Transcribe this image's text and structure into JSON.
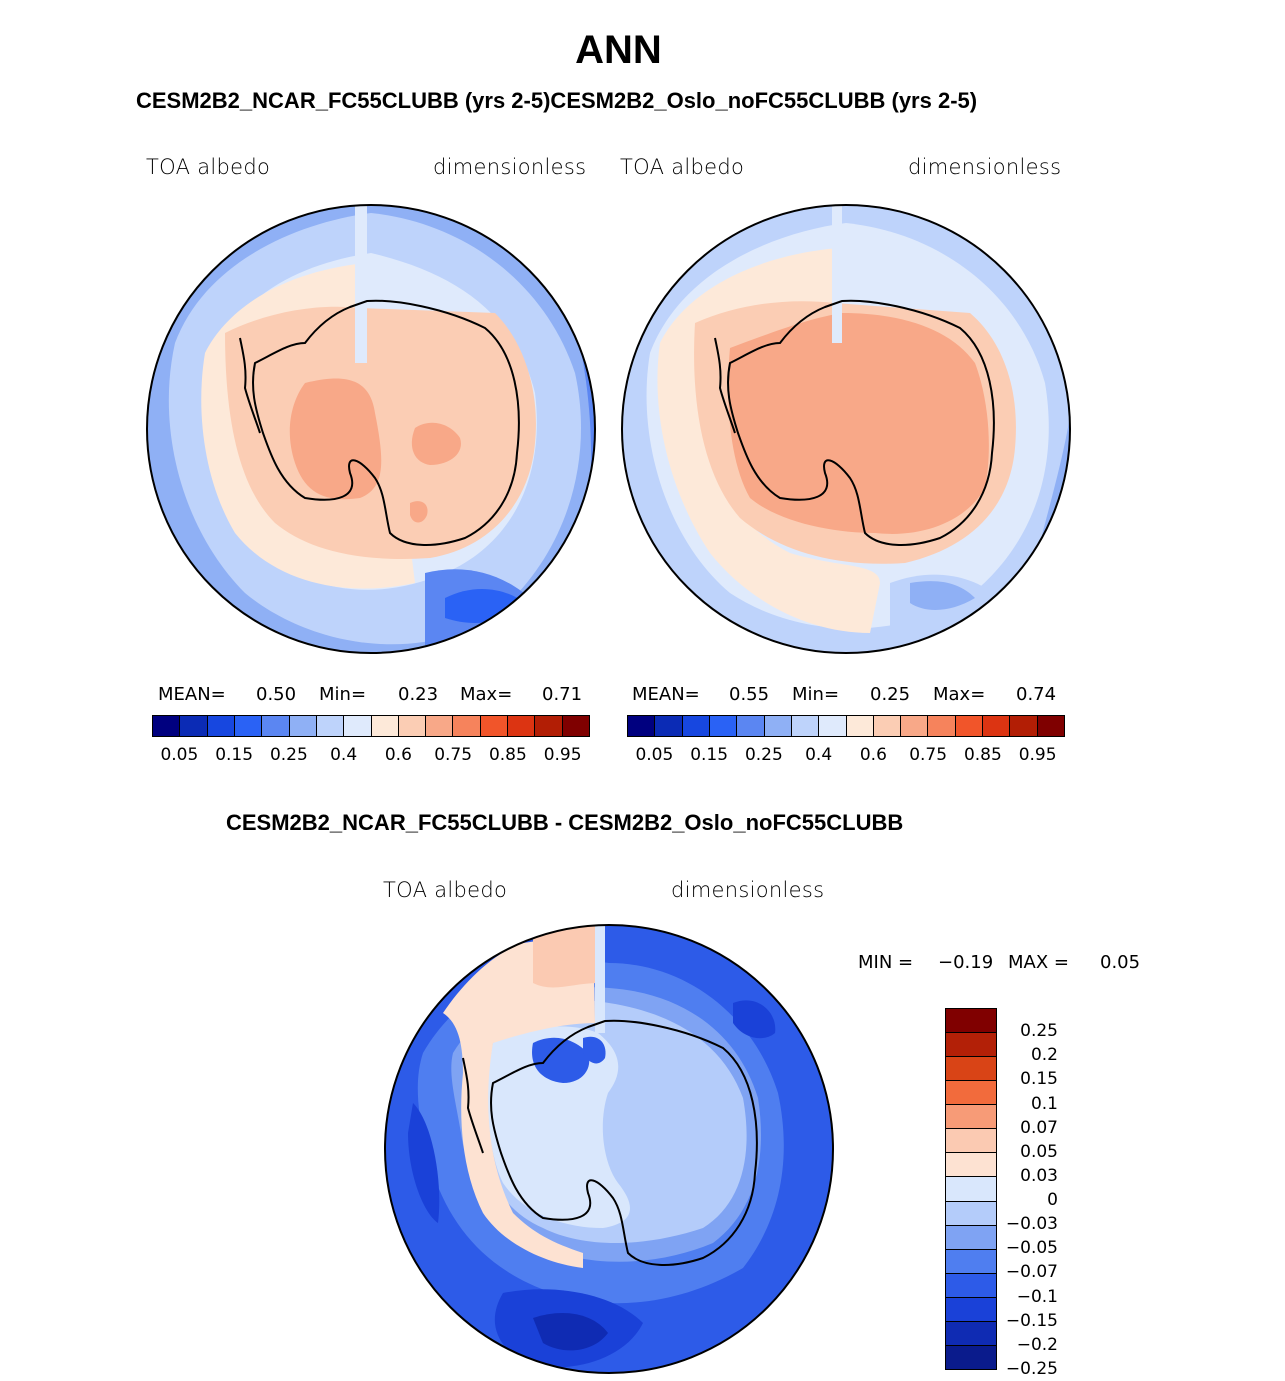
{
  "title": "ANN",
  "top_subtitle": "CESM2B2_NCAR_FC55CLUBB (yrs 2-5)CESM2B2_Oslo_noFC55CLUBB (yrs 2-5)",
  "diff_subtitle": "CESM2B2_NCAR_FC55CLUBB - CESM2B2_Oslo_noFC55CLUBB",
  "colors": {
    "abs_palette": [
      "#00007f",
      "#0b2bb5",
      "#1747e0",
      "#2a62f5",
      "#5b86f2",
      "#8fb0f5",
      "#bed3fb",
      "#dfeafc",
      "#fde9d9",
      "#fbcdb4",
      "#f8a888",
      "#f6835c",
      "#f1552a",
      "#dc3412",
      "#b21e05",
      "#7f0000"
    ],
    "diff_palette": [
      "#0a1b8c",
      "#0f2bb3",
      "#1a41d8",
      "#2d5be8",
      "#4f7ef0",
      "#7fa3f3",
      "#b4ccfa",
      "#d9e7fc",
      "#fde2d2",
      "#fbcab2",
      "#f79b77",
      "#f26b3c",
      "#d94416",
      "#b32007",
      "#800000"
    ]
  },
  "panels": [
    {
      "left_label": "TOA albedo",
      "right_label": "dimensionless",
      "mean_label": "MEAN=",
      "mean": "0.50",
      "min_label": "Min=",
      "min": "0.23",
      "max_label": "Max=",
      "max": "0.71"
    },
    {
      "left_label": "TOA albedo",
      "right_label": "dimensionless",
      "mean_label": "MEAN=",
      "mean": "0.55",
      "min_label": "Min=",
      "min": "0.25",
      "max_label": "Max=",
      "max": "0.74"
    }
  ],
  "abs_ticks": [
    "0.05",
    "0.15",
    "0.25",
    "0.4",
    "0.6",
    "0.75",
    "0.85",
    "0.95"
  ],
  "diff_panel": {
    "left_label": "TOA albedo",
    "right_label": "dimensionless",
    "min_label": "MIN =",
    "min": "−0.19",
    "max_label": "MAX =",
    "max": "0.05"
  },
  "diff_ticks": [
    "0.25",
    "0.2",
    "0.15",
    "0.1",
    "0.07",
    "0.05",
    "0.03",
    "0",
    "−0.03",
    "−0.05",
    "−0.07",
    "−0.1",
    "−0.15",
    "−0.2",
    "−0.25"
  ]
}
